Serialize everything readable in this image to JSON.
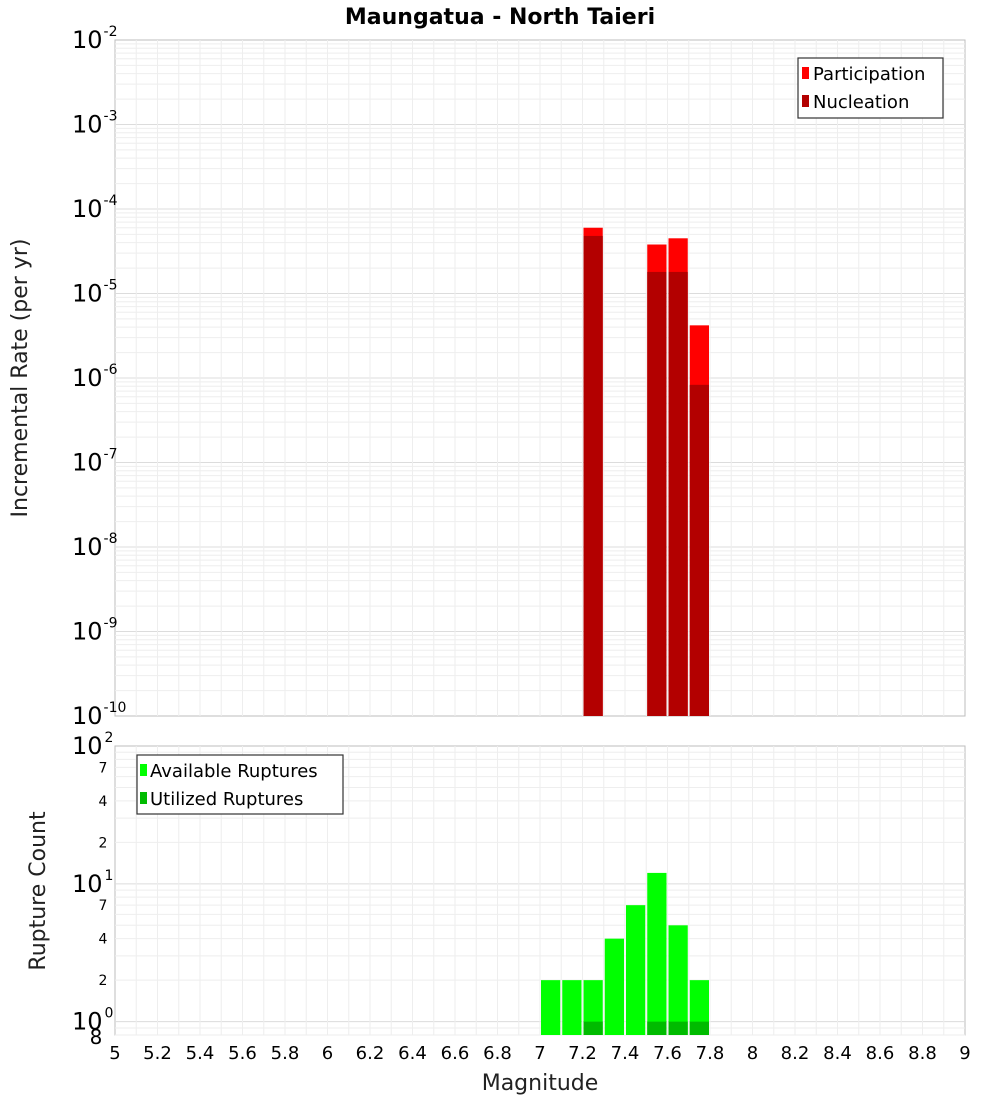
{
  "chart_data": [
    {
      "type": "bar",
      "title": "Maungatua - North Taieri",
      "xlabel": "",
      "ylabel": "Incremental Rate (per yr)",
      "yscale": "log",
      "xlim": [
        5,
        9
      ],
      "ylim": [
        1e-10,
        0.01
      ],
      "y_major_ticks": [
        {
          "base": "10",
          "exp": "-10"
        },
        {
          "base": "10",
          "exp": "-9"
        },
        {
          "base": "10",
          "exp": "-8"
        },
        {
          "base": "10",
          "exp": "-7"
        },
        {
          "base": "10",
          "exp": "-6"
        },
        {
          "base": "10",
          "exp": "-5"
        },
        {
          "base": "10",
          "exp": "-4"
        },
        {
          "base": "10",
          "exp": "-3"
        },
        {
          "base": "10",
          "exp": "-2"
        }
      ],
      "legend_position": "top-right",
      "bar_width": 0.1,
      "series": [
        {
          "name": "Participation",
          "color": "#ff0000",
          "x": [
            7.25,
            7.55,
            7.65,
            7.75
          ],
          "values": [
            6e-05,
            3.8e-05,
            4.5e-05,
            4.2e-06
          ]
        },
        {
          "name": "Nucleation",
          "color": "#b30000",
          "x": [
            7.25,
            7.55,
            7.65,
            7.75
          ],
          "values": [
            4.8e-05,
            1.8e-05,
            1.8e-05,
            8.3e-07
          ]
        }
      ]
    },
    {
      "type": "bar",
      "title": "",
      "xlabel": "Magnitude",
      "ylabel": "Rupture Count",
      "yscale": "log",
      "xlim": [
        5,
        9
      ],
      "ylim": [
        0.8,
        100
      ],
      "x_ticks": [
        "5",
        "5.2",
        "5.4",
        "5.6",
        "5.8",
        "6",
        "6.2",
        "6.4",
        "6.6",
        "6.8",
        "7",
        "7.2",
        "7.4",
        "7.6",
        "7.8",
        "8",
        "8.2",
        "8.4",
        "8.6",
        "8.8",
        "9"
      ],
      "y_major_ticks": [
        {
          "base": "10",
          "exp": "0"
        },
        {
          "base": "10",
          "exp": "1"
        },
        {
          "base": "10",
          "exp": "2"
        }
      ],
      "y_minor_ticks": [
        "8",
        "2",
        "4",
        "7",
        "2",
        "4",
        "7"
      ],
      "legend_position": "top-left",
      "bar_width": 0.1,
      "series": [
        {
          "name": "Available Ruptures",
          "color": "#00ff00",
          "x": [
            7.05,
            7.15,
            7.25,
            7.35,
            7.45,
            7.55,
            7.65,
            7.75
          ],
          "values": [
            2,
            2,
            2,
            4,
            7,
            12,
            5,
            2
          ]
        },
        {
          "name": "Utilized Ruptures",
          "color": "#00bb00",
          "x": [
            7.25,
            7.55,
            7.65,
            7.75
          ],
          "values": [
            1,
            1,
            1,
            1
          ]
        }
      ]
    }
  ]
}
